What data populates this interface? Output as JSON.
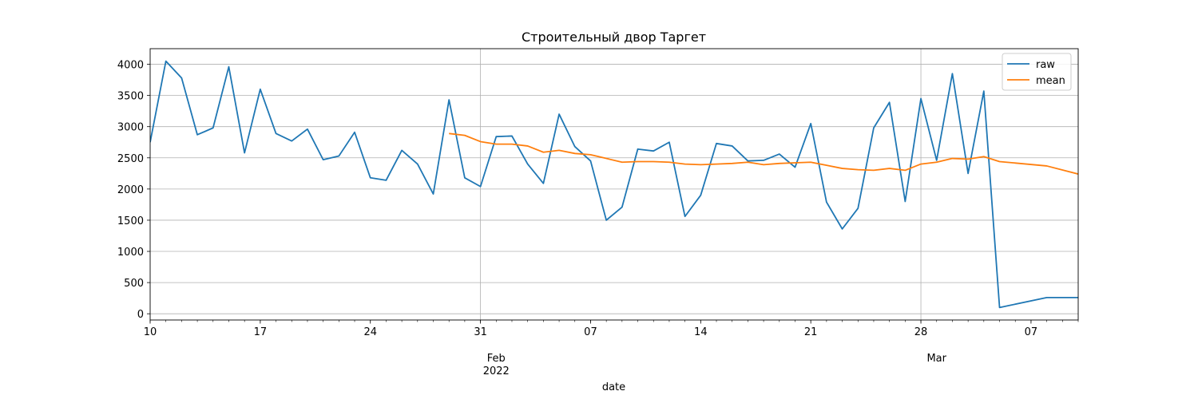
{
  "chart_data": {
    "type": "line",
    "title": "Строительный двор Таргет",
    "xlabel": "date",
    "ylabel": "",
    "x_range": [
      "2022-01-10",
      "2022-03-10"
    ],
    "ylim": [
      -100,
      4250
    ],
    "grid": true,
    "legend_position": "top-right",
    "y_ticks": [
      0,
      500,
      1000,
      1500,
      2000,
      2500,
      3000,
      3500,
      4000
    ],
    "x_major_ticks": [
      {
        "date": "2022-01-10",
        "label": "10",
        "sublabel": "",
        "grid": false
      },
      {
        "date": "2022-01-17",
        "label": "17",
        "sublabel": "",
        "grid": false
      },
      {
        "date": "2022-01-24",
        "label": "24",
        "sublabel": "",
        "grid": false
      },
      {
        "date": "2022-01-31",
        "label": "31",
        "sublabel": "",
        "grid": true
      },
      {
        "date": "2022-02-01",
        "label": "Feb",
        "sublabel": "2022",
        "grid": false
      },
      {
        "date": "2022-02-07",
        "label": "07",
        "sublabel": "",
        "grid": false
      },
      {
        "date": "2022-02-14",
        "label": "14",
        "sublabel": "",
        "grid": false
      },
      {
        "date": "2022-02-21",
        "label": "21",
        "sublabel": "",
        "grid": false
      },
      {
        "date": "2022-02-28",
        "label": "28",
        "sublabel": "",
        "grid": true
      },
      {
        "date": "2022-03-01",
        "label": "Mar",
        "sublabel": "",
        "grid": false
      },
      {
        "date": "2022-03-07",
        "label": "07",
        "sublabel": "",
        "grid": false
      }
    ],
    "series": [
      {
        "name": "raw",
        "color": "#1f77b4",
        "points": [
          [
            "2022-01-10",
            2750
          ],
          [
            "2022-01-11",
            4050
          ],
          [
            "2022-01-12",
            3780
          ],
          [
            "2022-01-13",
            2870
          ],
          [
            "2022-01-14",
            2980
          ],
          [
            "2022-01-15",
            3960
          ],
          [
            "2022-01-16",
            2580
          ],
          [
            "2022-01-17",
            3600
          ],
          [
            "2022-01-18",
            2890
          ],
          [
            "2022-01-19",
            2770
          ],
          [
            "2022-01-20",
            2960
          ],
          [
            "2022-01-21",
            2470
          ],
          [
            "2022-01-22",
            2530
          ],
          [
            "2022-01-23",
            2910
          ],
          [
            "2022-01-24",
            2180
          ],
          [
            "2022-01-25",
            2140
          ],
          [
            "2022-01-26",
            2620
          ],
          [
            "2022-01-27",
            2400
          ],
          [
            "2022-01-28",
            1920
          ],
          [
            "2022-01-29",
            3430
          ],
          [
            "2022-01-30",
            2180
          ],
          [
            "2022-01-31",
            2040
          ],
          [
            "2022-02-01",
            2840
          ],
          [
            "2022-02-02",
            2850
          ],
          [
            "2022-02-03",
            2400
          ],
          [
            "2022-02-04",
            2090
          ],
          [
            "2022-02-05",
            3200
          ],
          [
            "2022-02-06",
            2680
          ],
          [
            "2022-02-07",
            2450
          ],
          [
            "2022-02-08",
            1500
          ],
          [
            "2022-02-09",
            1710
          ],
          [
            "2022-02-10",
            2640
          ],
          [
            "2022-02-11",
            2610
          ],
          [
            "2022-02-12",
            2750
          ],
          [
            "2022-02-13",
            1560
          ],
          [
            "2022-02-14",
            1900
          ],
          [
            "2022-02-15",
            2730
          ],
          [
            "2022-02-16",
            2690
          ],
          [
            "2022-02-17",
            2450
          ],
          [
            "2022-02-18",
            2460
          ],
          [
            "2022-02-19",
            2560
          ],
          [
            "2022-02-20",
            2350
          ],
          [
            "2022-02-21",
            3050
          ],
          [
            "2022-02-22",
            1790
          ],
          [
            "2022-02-23",
            1360
          ],
          [
            "2022-02-24",
            1690
          ],
          [
            "2022-02-25",
            2980
          ],
          [
            "2022-02-26",
            3390
          ],
          [
            "2022-02-27",
            1800
          ],
          [
            "2022-02-28",
            3450
          ],
          [
            "2022-03-01",
            2460
          ],
          [
            "2022-03-02",
            3850
          ],
          [
            "2022-03-03",
            2250
          ],
          [
            "2022-03-04",
            3570
          ],
          [
            "2022-03-05",
            100
          ],
          [
            "2022-03-08",
            260
          ],
          [
            "2022-03-10",
            260
          ]
        ]
      },
      {
        "name": "mean",
        "color": "#ff7f0e",
        "points": [
          [
            "2022-01-29",
            2890
          ],
          [
            "2022-01-30",
            2860
          ],
          [
            "2022-01-31",
            2760
          ],
          [
            "2022-02-01",
            2720
          ],
          [
            "2022-02-02",
            2720
          ],
          [
            "2022-02-03",
            2690
          ],
          [
            "2022-02-04",
            2590
          ],
          [
            "2022-02-05",
            2620
          ],
          [
            "2022-02-06",
            2570
          ],
          [
            "2022-02-07",
            2550
          ],
          [
            "2022-02-08",
            2490
          ],
          [
            "2022-02-09",
            2430
          ],
          [
            "2022-02-10",
            2440
          ],
          [
            "2022-02-11",
            2440
          ],
          [
            "2022-02-12",
            2430
          ],
          [
            "2022-02-13",
            2400
          ],
          [
            "2022-02-14",
            2390
          ],
          [
            "2022-02-15",
            2400
          ],
          [
            "2022-02-16",
            2410
          ],
          [
            "2022-02-17",
            2430
          ],
          [
            "2022-02-18",
            2390
          ],
          [
            "2022-02-19",
            2410
          ],
          [
            "2022-02-20",
            2420
          ],
          [
            "2022-02-21",
            2430
          ],
          [
            "2022-02-22",
            2380
          ],
          [
            "2022-02-23",
            2330
          ],
          [
            "2022-02-24",
            2310
          ],
          [
            "2022-02-25",
            2300
          ],
          [
            "2022-02-26",
            2330
          ],
          [
            "2022-02-27",
            2300
          ],
          [
            "2022-02-28",
            2400
          ],
          [
            "2022-03-01",
            2430
          ],
          [
            "2022-03-02",
            2490
          ],
          [
            "2022-03-03",
            2480
          ],
          [
            "2022-03-04",
            2520
          ],
          [
            "2022-03-05",
            2440
          ],
          [
            "2022-03-08",
            2370
          ],
          [
            "2022-03-10",
            2240
          ]
        ]
      }
    ]
  }
}
